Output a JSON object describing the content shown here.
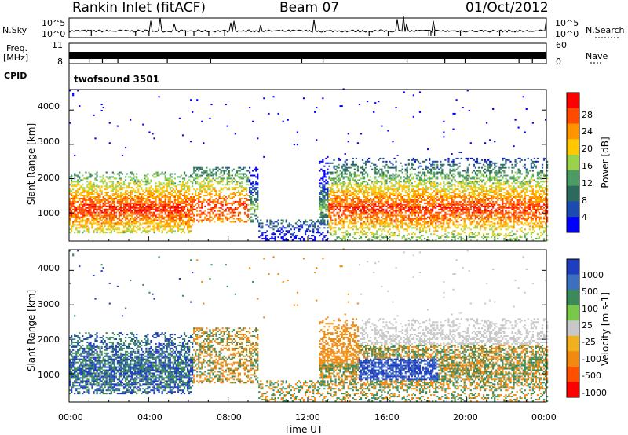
{
  "header": {
    "station": "Rankin Inlet (fitACF)",
    "beam": "Beam 07",
    "date": "01/Oct/2012"
  },
  "labels": {
    "nsky": "N.Sky",
    "nsearch": "N.Search",
    "freq_line1": "Freq.",
    "freq_line2": "[MHz]",
    "nave": "Nave",
    "cpid": "CPID",
    "cpid_value": "twofsound 3501"
  },
  "chart_data": [
    {
      "type": "line",
      "panel": "noise",
      "yticks_left": [
        "10^5",
        "10^0"
      ],
      "yticks_right": [
        "10^5",
        "10^0"
      ],
      "series": [
        {
          "name": "N.Sky",
          "style": "solid"
        },
        {
          "name": "N.Search",
          "style": "dotted"
        }
      ]
    },
    {
      "type": "line",
      "panel": "frequency",
      "yticks_left": [
        "11",
        "8"
      ],
      "yticks_right": [
        "60",
        "0"
      ],
      "series": [
        {
          "name": "Freq.",
          "style": "solid"
        },
        {
          "name": "Nave",
          "style": "dotted"
        }
      ]
    },
    {
      "type": "heatmap",
      "panel": "power",
      "ylabel": "Slant Range [km]",
      "ylim": [
        180,
        4600
      ],
      "yticks": [
        "1000",
        "2000",
        "3000",
        "4000"
      ],
      "xlim_hours": [
        0,
        24
      ],
      "colorbar": {
        "label": "Power [dB]",
        "ticks": [
          "28",
          "24",
          "20",
          "16",
          "12",
          "8",
          "4"
        ],
        "colors": [
          "#ff0000",
          "#ff4b00",
          "#ff9600",
          "#ffc800",
          "#9bd24b",
          "#4b9b64",
          "#2b6a5c",
          "#1b4ab0",
          "#0000ff"
        ]
      }
    },
    {
      "type": "heatmap",
      "panel": "velocity",
      "ylabel": "Slant Range [km]",
      "ylim": [
        180,
        4600
      ],
      "yticks": [
        "1000",
        "2000",
        "3000",
        "4000"
      ],
      "xlabel": "Time UT",
      "xticks": [
        "00:00",
        "04:00",
        "08:00",
        "12:00",
        "16:00",
        "20:00",
        "00:00"
      ],
      "colorbar": {
        "label": "Velocity [m s-1]",
        "ticks": [
          "1000",
          "500",
          "100",
          "25",
          "-25",
          "-100",
          "-500",
          "-1000"
        ],
        "colors": [
          "#1f3dbf",
          "#3c6fbf",
          "#3b8a5a",
          "#7ac84a",
          "#c8c8c8",
          "#f0b020",
          "#f08a10",
          "#ff5000",
          "#ff0000"
        ]
      }
    }
  ]
}
